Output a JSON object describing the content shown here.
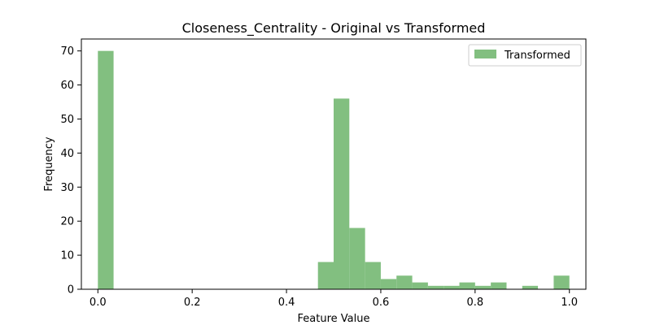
{
  "chart_data": {
    "type": "bar",
    "title": "Closeness_Centrality - Original vs Transformed",
    "xlabel": "Feature Value",
    "ylabel": "Frequency",
    "xlim": [
      -0.035,
      1.035
    ],
    "ylim": [
      0,
      73.5
    ],
    "xticks": [
      0.0,
      0.2,
      0.4,
      0.6,
      0.8,
      1.0
    ],
    "xtick_labels": [
      "0.0",
      "0.2",
      "0.4",
      "0.6",
      "0.8",
      "1.0"
    ],
    "yticks": [
      0,
      10,
      20,
      30,
      40,
      50,
      60,
      70
    ],
    "ytick_labels": [
      "0",
      "10",
      "20",
      "30",
      "40",
      "50",
      "60",
      "70"
    ],
    "grid": false,
    "legend": {
      "position": "top-right"
    },
    "series": [
      {
        "name": "Transformed",
        "color": "#82bf80",
        "bin_edges": [
          0.0,
          0.0333,
          0.0667,
          0.1,
          0.1333,
          0.1667,
          0.2,
          0.2333,
          0.2667,
          0.3,
          0.3333,
          0.3667,
          0.4,
          0.4333,
          0.4667,
          0.5,
          0.5333,
          0.5667,
          0.6,
          0.6333,
          0.6667,
          0.7,
          0.7333,
          0.7667,
          0.8,
          0.8333,
          0.8667,
          0.9,
          0.9333,
          0.9667,
          1.0
        ],
        "values": [
          70,
          0,
          0,
          0,
          0,
          0,
          0,
          0,
          0,
          0,
          0,
          0,
          0,
          0,
          8,
          56,
          18,
          8,
          3,
          4,
          2,
          1,
          1,
          2,
          1,
          2,
          0,
          1,
          0,
          4
        ]
      }
    ]
  }
}
